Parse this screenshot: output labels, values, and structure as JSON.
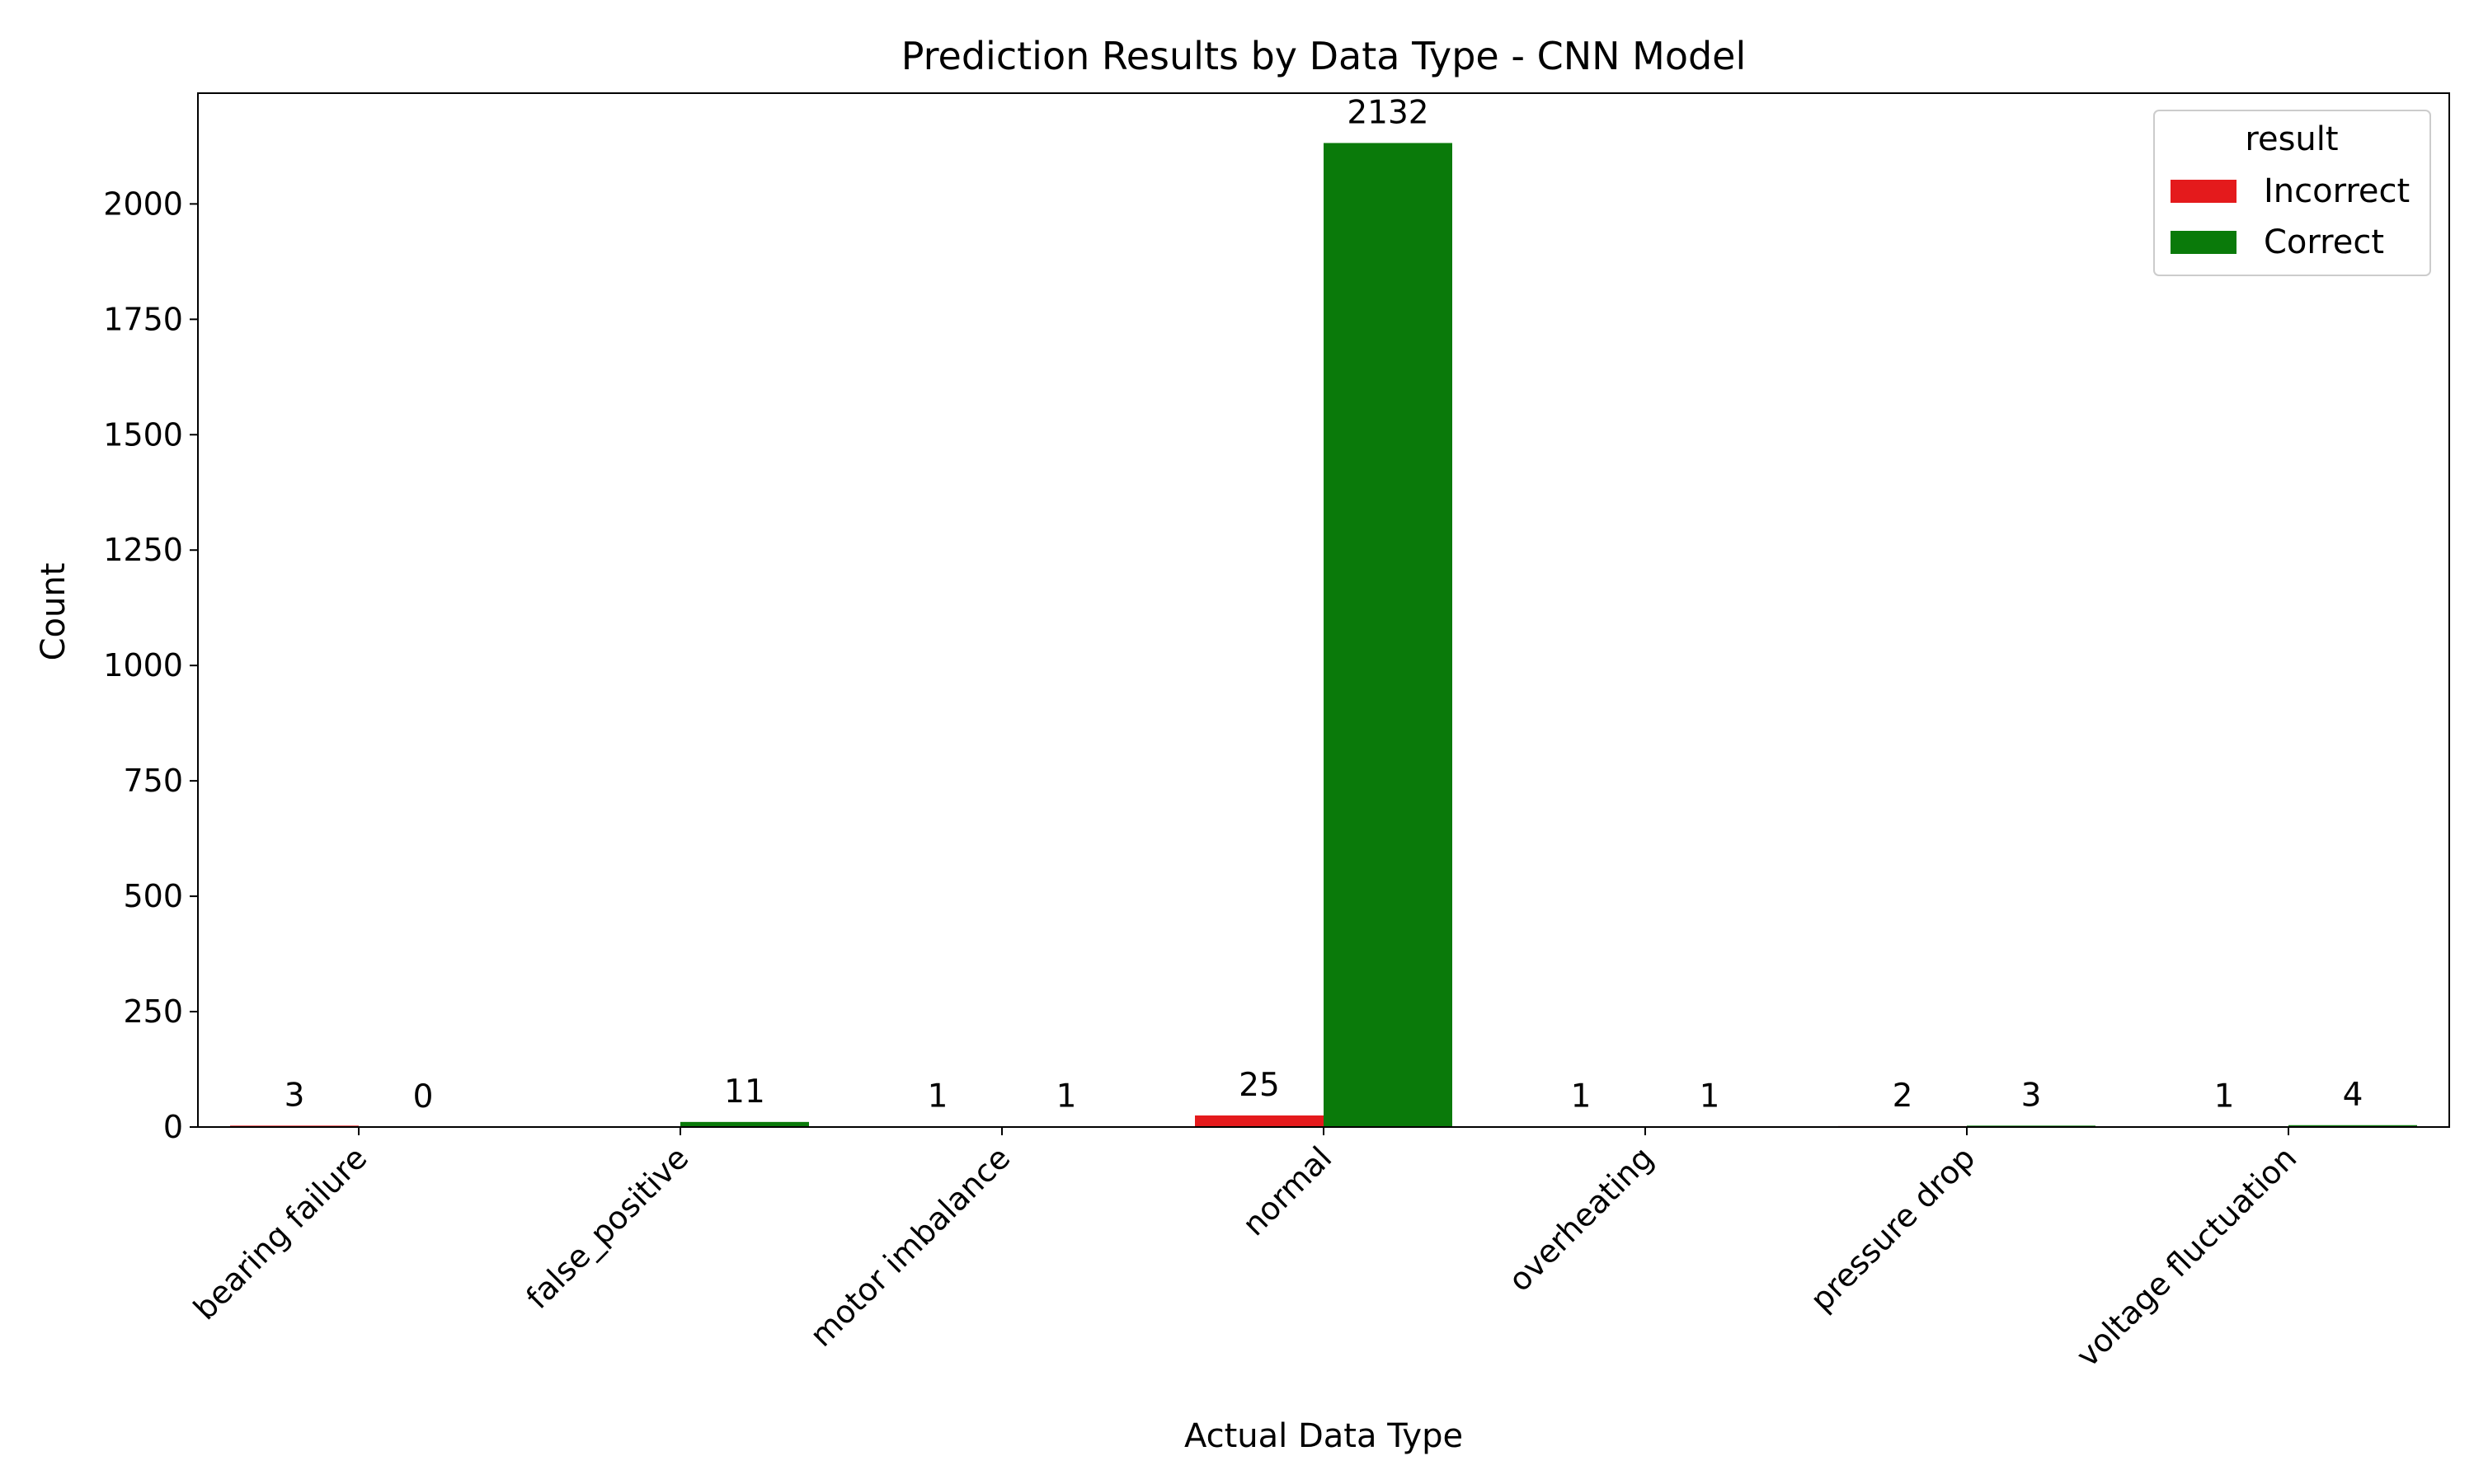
{
  "chart_data": {
    "type": "bar",
    "title": "Prediction Results by Data Type - CNN Model",
    "xlabel": "Actual Data Type",
    "ylabel": "Count",
    "ylim": [
      0,
      2240
    ],
    "yticks": [
      0,
      250,
      500,
      750,
      1000,
      1250,
      1500,
      1750,
      2000
    ],
    "categories": [
      "bearing failure",
      "false_positive",
      "motor imbalance",
      "normal",
      "overheating",
      "pressure drop",
      "voltage fluctuation"
    ],
    "series": [
      {
        "name": "Incorrect",
        "color": "#e41a1c",
        "values": [
          3,
          null,
          1,
          25,
          1,
          2,
          1
        ],
        "labels": [
          "3",
          "",
          "1",
          "25",
          "1",
          "2",
          "1"
        ]
      },
      {
        "name": "Correct",
        "color": "#0a7a0a",
        "values": [
          0,
          11,
          1,
          2132,
          1,
          3,
          4
        ],
        "labels": [
          "0",
          "11",
          "1",
          "2132",
          "1",
          "3",
          "4"
        ]
      }
    ],
    "legend": {
      "title": "result",
      "placement": "top-right"
    },
    "grid": false
  }
}
